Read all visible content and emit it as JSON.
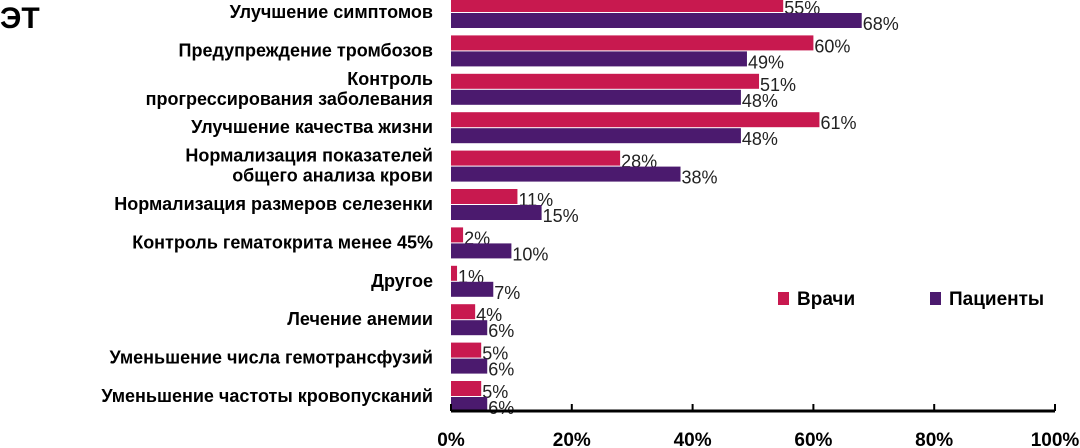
{
  "chart_data": {
    "type": "bar",
    "orientation": "horizontal",
    "title": "ЭТ",
    "categories": [
      [
        "Улучшение симптомов"
      ],
      [
        "Предупреждение тромбозов"
      ],
      [
        "Контроль",
        "прогрессирования заболевания"
      ],
      [
        "Улучшение качества жизни"
      ],
      [
        "Нормализация показателей",
        "общего анализа крови"
      ],
      [
        "Нормализация размеров селезенки"
      ],
      [
        "Контроль гематокрита менее 45%"
      ],
      [
        "Другое"
      ],
      [
        "Лечение анемии"
      ],
      [
        "Уменьшение числа гемотрансфузий"
      ],
      [
        "Уменьшение частоты кровопусканий"
      ]
    ],
    "series": [
      {
        "name": "Врачи",
        "color": "#c8194f",
        "values": [
          55,
          60,
          51,
          61,
          28,
          11,
          2,
          1,
          4,
          5,
          5
        ]
      },
      {
        "name": "Пациенты",
        "color": "#4b1a6e",
        "values": [
          68,
          49,
          48,
          48,
          38,
          15,
          10,
          7,
          6,
          6,
          6
        ]
      }
    ],
    "value_suffix": "%",
    "xlim": [
      0,
      100
    ],
    "xticks": [
      "0%",
      "20%",
      "40%",
      "60%",
      "80%",
      "100%"
    ],
    "grid": false,
    "legend": "bottom-right"
  }
}
